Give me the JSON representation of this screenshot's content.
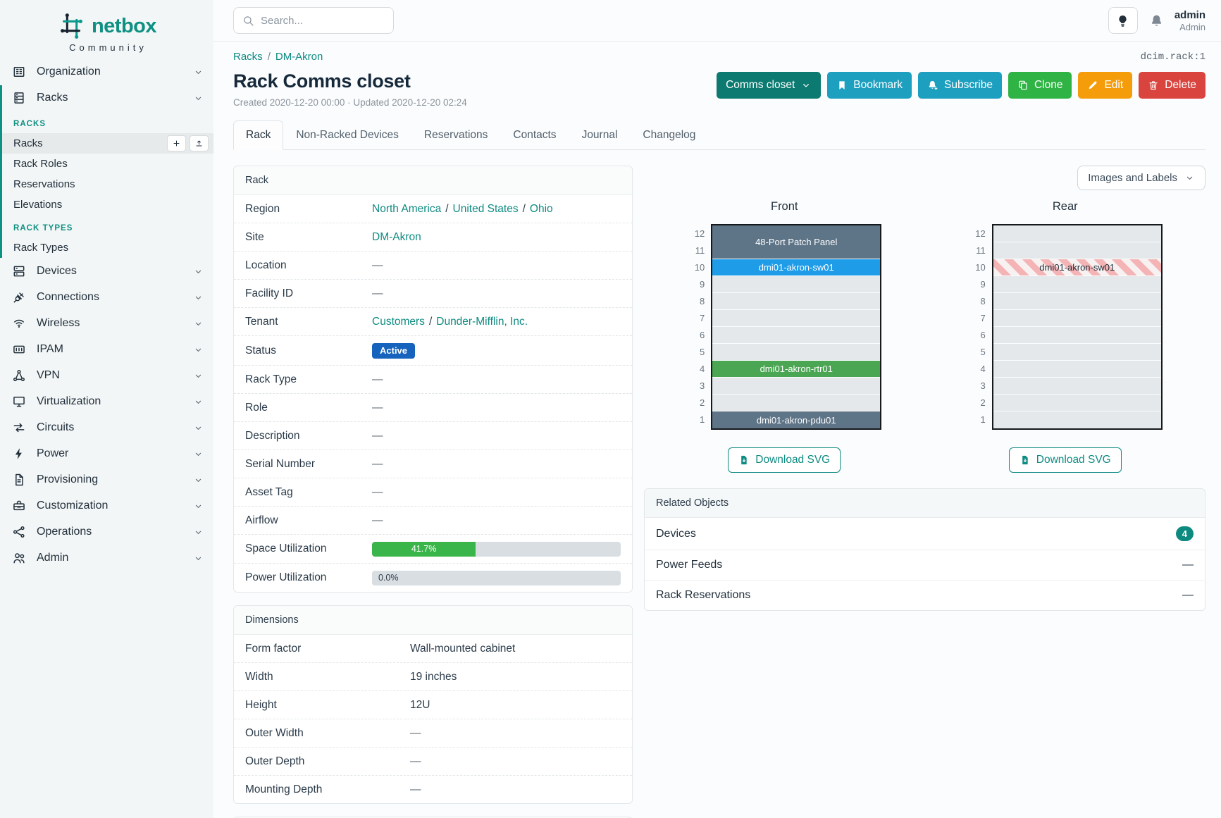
{
  "brand": {
    "name": "netbox",
    "community": "Community"
  },
  "topbar": {
    "search_placeholder": "Search...",
    "user_name": "admin",
    "user_role": "Admin"
  },
  "breadcrumb": {
    "items": [
      "Racks",
      "DM-Akron"
    ],
    "object_id": "dcim.rack:1"
  },
  "header": {
    "title": "Rack Comms closet",
    "meta": "Created 2020-12-20 00:00 · Updated 2020-12-20 02:24",
    "actions": [
      {
        "label": "Comms closet",
        "style": "teal-dark",
        "icon": "chevron-down",
        "icon_after": true,
        "name": "rack-selector-button"
      },
      {
        "label": "Bookmark",
        "style": "cyan",
        "icon": "bookmark",
        "name": "bookmark-button"
      },
      {
        "label": "Subscribe",
        "style": "cyan",
        "icon": "bell-plus",
        "name": "subscribe-button"
      },
      {
        "label": "Clone",
        "style": "green",
        "icon": "copy",
        "name": "clone-button"
      },
      {
        "label": "Edit",
        "style": "orange",
        "icon": "pencil",
        "name": "edit-button"
      },
      {
        "label": "Delete",
        "style": "red",
        "icon": "trash",
        "name": "delete-button"
      }
    ]
  },
  "tabs": [
    {
      "label": "Rack",
      "active": true
    },
    {
      "label": "Non-Racked Devices"
    },
    {
      "label": "Reservations"
    },
    {
      "label": "Contacts"
    },
    {
      "label": "Journal"
    },
    {
      "label": "Changelog"
    }
  ],
  "sidebar": {
    "groups": [
      {
        "label": "Organization",
        "icon": "building"
      },
      {
        "label": "Racks",
        "icon": "rack",
        "expanded": true,
        "children": [
          {
            "heading": "RACKS"
          },
          {
            "label": "Racks",
            "active": true,
            "buttons": [
              {
                "icon": "plus",
                "name": "racks-add-button"
              },
              {
                "icon": "upload",
                "name": "racks-import-button"
              }
            ]
          },
          {
            "label": "Rack Roles"
          },
          {
            "label": "Reservations"
          },
          {
            "label": "Elevations"
          },
          {
            "heading": "RACK TYPES"
          },
          {
            "label": "Rack Types"
          }
        ]
      },
      {
        "label": "Devices",
        "icon": "server"
      },
      {
        "label": "Connections",
        "icon": "plug"
      },
      {
        "label": "Wireless",
        "icon": "wifi"
      },
      {
        "label": "IPAM",
        "icon": "counter"
      },
      {
        "label": "VPN",
        "icon": "network"
      },
      {
        "label": "Virtualization",
        "icon": "monitor"
      },
      {
        "label": "Circuits",
        "icon": "transfer"
      },
      {
        "label": "Power",
        "icon": "flash"
      },
      {
        "label": "Provisioning",
        "icon": "document"
      },
      {
        "label": "Customization",
        "icon": "toolbox"
      },
      {
        "label": "Operations",
        "icon": "share"
      },
      {
        "label": "Admin",
        "icon": "users"
      }
    ]
  },
  "rack_panel": {
    "title": "Rack",
    "label_width": 180,
    "rows": [
      {
        "label": "Region",
        "type": "links",
        "links": [
          "North America",
          "United States",
          "Ohio"
        ]
      },
      {
        "label": "Site",
        "type": "links",
        "links": [
          "DM-Akron"
        ]
      },
      {
        "label": "Location",
        "type": "dash"
      },
      {
        "label": "Facility ID",
        "type": "dash"
      },
      {
        "label": "Tenant",
        "type": "links",
        "links": [
          "Customers",
          "Dunder-Mifflin, Inc."
        ]
      },
      {
        "label": "Status",
        "type": "badge",
        "value": "Active"
      },
      {
        "label": "Rack Type",
        "type": "dash"
      },
      {
        "label": "Role",
        "type": "dash"
      },
      {
        "label": "Description",
        "type": "dash"
      },
      {
        "label": "Serial Number",
        "type": "dash"
      },
      {
        "label": "Asset Tag",
        "type": "dash"
      },
      {
        "label": "Airflow",
        "type": "dash"
      },
      {
        "label": "Space Utilization",
        "type": "progress",
        "percent": 41.7,
        "display": "41.7%"
      },
      {
        "label": "Power Utilization",
        "type": "progress",
        "percent": 0,
        "display": "0.0%"
      }
    ]
  },
  "dimensions_panel": {
    "title": "Dimensions",
    "label_width": 234,
    "rows": [
      {
        "label": "Form factor",
        "type": "text",
        "value": "Wall-mounted cabinet"
      },
      {
        "label": "Width",
        "type": "text",
        "value": "19 inches"
      },
      {
        "label": "Height",
        "type": "text",
        "value": "12U"
      },
      {
        "label": "Outer Width",
        "type": "dash"
      },
      {
        "label": "Outer Depth",
        "type": "dash"
      },
      {
        "label": "Mounting Depth",
        "type": "dash"
      }
    ]
  },
  "elevation": {
    "view_selector": "Images and Labels",
    "download_label": "Download SVG",
    "unit_count": 12,
    "front": {
      "label": "Front",
      "slots": [
        {
          "span": 2,
          "label": "48-Port Patch Panel",
          "style": "slate"
        },
        {
          "span": 1,
          "label": "dmi01-akron-sw01",
          "style": "blue"
        },
        {
          "span": 1,
          "style": "empty"
        },
        {
          "span": 1,
          "style": "empty"
        },
        {
          "span": 1,
          "style": "empty"
        },
        {
          "span": 1,
          "style": "empty"
        },
        {
          "span": 1,
          "style": "empty"
        },
        {
          "span": 1,
          "label": "dmi01-akron-rtr01",
          "style": "green"
        },
        {
          "span": 1,
          "style": "empty"
        },
        {
          "span": 1,
          "style": "empty"
        },
        {
          "span": 1,
          "label": "dmi01-akron-pdu01",
          "style": "slate"
        }
      ]
    },
    "rear": {
      "label": "Rear",
      "slots": [
        {
          "span": 1,
          "style": "empty"
        },
        {
          "span": 1,
          "style": "empty"
        },
        {
          "span": 1,
          "label": "dmi01-akron-sw01",
          "style": "striped"
        },
        {
          "span": 1,
          "style": "empty"
        },
        {
          "span": 1,
          "style": "empty"
        },
        {
          "span": 1,
          "style": "empty"
        },
        {
          "span": 1,
          "style": "empty"
        },
        {
          "span": 1,
          "style": "empty"
        },
        {
          "span": 1,
          "style": "empty"
        },
        {
          "span": 1,
          "style": "empty"
        },
        {
          "span": 1,
          "style": "empty"
        },
        {
          "span": 1,
          "style": "empty"
        }
      ]
    }
  },
  "related_panel": {
    "title": "Related Objects",
    "rows": [
      {
        "label": "Devices",
        "badge": "4"
      },
      {
        "label": "Power Feeds",
        "dash": true
      },
      {
        "label": "Rack Reservations",
        "dash": true
      }
    ]
  },
  "colors": {
    "accent_teal": "#0e8b82",
    "sidebar_heading_teal": "#0e9082",
    "status_active_blue": "#1563bd",
    "utilization_green": "#3ab54a",
    "device_blue": "#1e9ce8",
    "device_green": "#4ba653",
    "device_slate": "#5e7487",
    "button_cyan": "#1d9fbf",
    "button_green": "#2fb344",
    "button_orange": "#f59c0b",
    "button_red": "#d9443e"
  }
}
